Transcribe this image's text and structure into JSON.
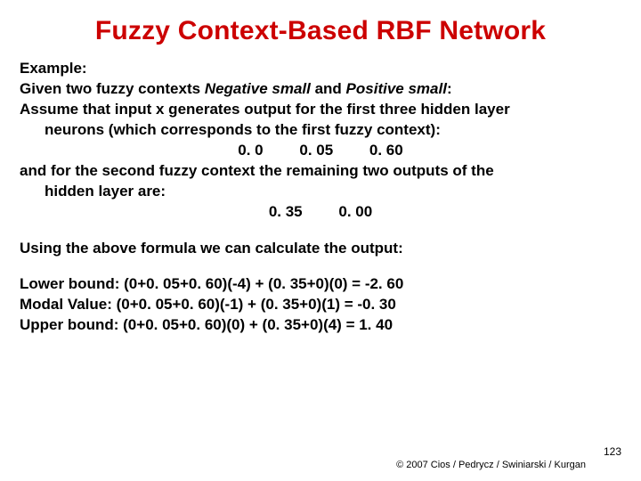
{
  "title": "Fuzzy Context-Based RBF Network",
  "example_label": "Example:",
  "line_given_prefix": "Given two fuzzy contexts ",
  "context1": "Negative small",
  "and_word": " and ",
  "context2": "Positive small",
  "colon": ":",
  "line_assume1": "Assume that input x generates output for the first three hidden layer",
  "line_assume2": "neurons (which corresponds to the first fuzzy context):",
  "vals1_a": "0. 0",
  "vals1_b": "0. 05",
  "vals1_c": "0. 60",
  "line_second1": "and for the second fuzzy context the remaining two outputs of the",
  "line_second2": "hidden layer are:",
  "vals2_a": "0. 35",
  "vals2_b": "0. 00",
  "line_using": "Using the above formula we can calculate the output:",
  "lower_bound": "Lower bound: (0+0. 05+0. 60)(-4) + (0. 35+0)(0) = -2. 60",
  "modal_value": "Modal Value:  (0+0. 05+0. 60)(-1) + (0. 35+0)(1) = -0. 30",
  "upper_bound": "Upper bound: (0+0. 05+0. 60)(0) + (0. 35+0)(4) = 1. 40",
  "page_number": "123",
  "copyright": "© 2007 Cios / Pedrycz / Swiniarski / Kurgan"
}
